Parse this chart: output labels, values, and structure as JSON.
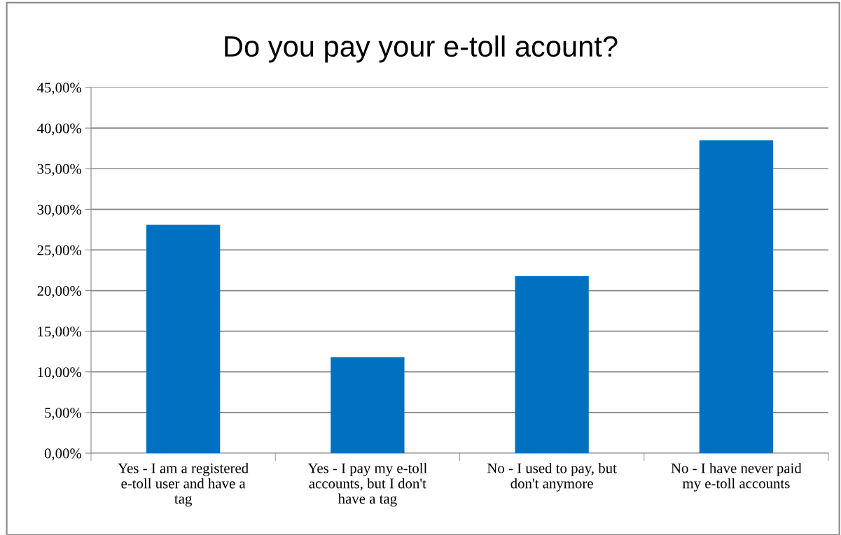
{
  "chart_data": {
    "type": "bar",
    "title": "Do you pay your e-toll acount?",
    "categories": [
      "Yes - I am a registered\ne-toll user and have a\ntag",
      "Yes - I pay my e-toll\naccounts, but I don't\nhave a tag",
      "No - I used to pay, but\ndon't anymore",
      "No - I have never paid\nmy e-toll accounts"
    ],
    "values": [
      28.1,
      11.8,
      21.8,
      38.5
    ],
    "color": "#0070c0",
    "ylim": [
      0,
      45
    ],
    "yticks": [
      {
        "value": 0,
        "label": "0,00%"
      },
      {
        "value": 5,
        "label": "5,00%"
      },
      {
        "value": 10,
        "label": "10,00%"
      },
      {
        "value": 15,
        "label": "15,00%"
      },
      {
        "value": 20,
        "label": "20,00%"
      },
      {
        "value": 25,
        "label": "25,00%"
      },
      {
        "value": 30,
        "label": "30,00%"
      },
      {
        "value": 35,
        "label": "35,00%"
      },
      {
        "value": 40,
        "label": "40,00%"
      },
      {
        "value": 45,
        "label": "45,00%"
      }
    ],
    "grid": "y",
    "legend": false
  }
}
